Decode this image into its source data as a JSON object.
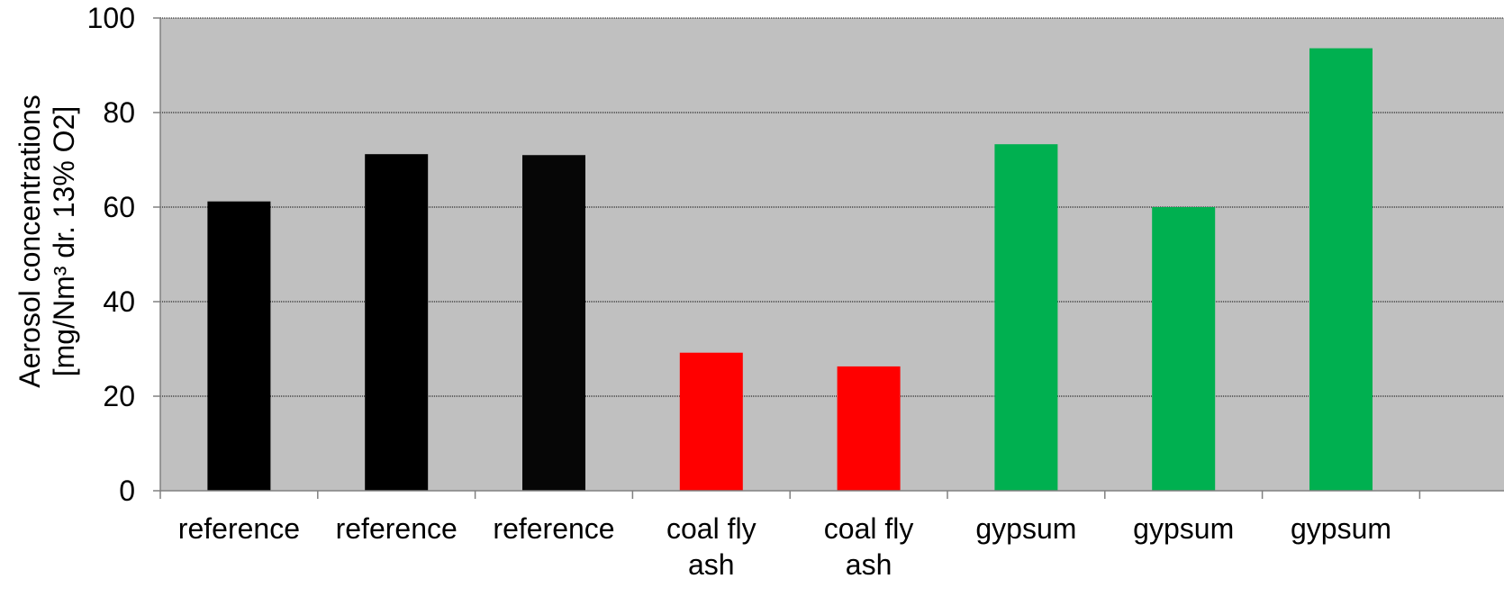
{
  "chart_data": {
    "type": "bar",
    "title": "",
    "xlabel": "",
    "ylabel": [
      "Aerosol concentrations",
      "[mg/Nm³ dr. 13% O2]"
    ],
    "ylim": [
      0,
      100
    ],
    "yticks": [
      0,
      20,
      40,
      60,
      80,
      100
    ],
    "grid": true,
    "plot_background": "#c0c0c0",
    "categories": [
      [
        "reference"
      ],
      [
        "reference"
      ],
      [
        "reference"
      ],
      [
        "coal fly",
        "ash"
      ],
      [
        "coal fly",
        "ash"
      ],
      [
        "gypsum"
      ],
      [
        "gypsum"
      ],
      [
        "gypsum"
      ]
    ],
    "values": [
      61.2,
      71.2,
      71.0,
      29.2,
      26.3,
      73.3,
      60.0,
      93.6
    ],
    "colors": [
      "#000000",
      "#000000",
      "#060606",
      "#ff0000",
      "#ff0000",
      "#00b050",
      "#00b050",
      "#00b050"
    ]
  }
}
